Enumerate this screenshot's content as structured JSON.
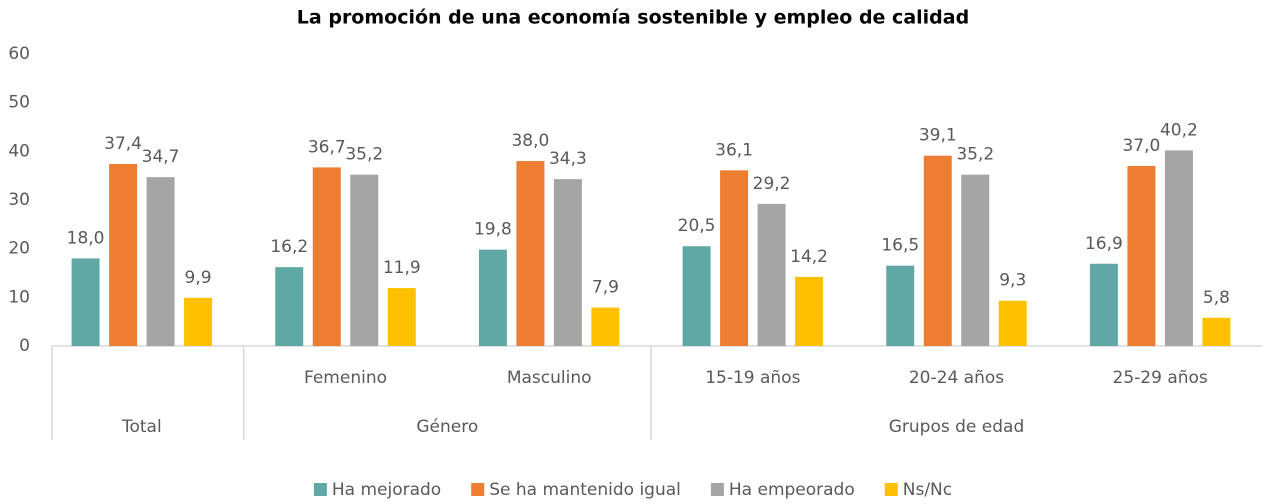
{
  "chart_data": {
    "type": "bar",
    "title": "La promoción de una economía sostenible y empleo de calidad",
    "categories": [
      null,
      "Femenino",
      "Masculino",
      "15-19 años",
      "20-24 años",
      "25-29 años"
    ],
    "groups": [
      {
        "label": "Total",
        "count": 1
      },
      {
        "label": "Género",
        "count": 2
      },
      {
        "label": "Grupos de edad",
        "count": 3
      }
    ],
    "series": [
      {
        "name": "Ha mejorado",
        "color": "#5fa8a5",
        "values": [
          18.0,
          16.2,
          19.8,
          20.5,
          16.5,
          16.9
        ],
        "value_labels": [
          "18,0",
          "16,2",
          "19,8",
          "20,5",
          "16,5",
          "16,9"
        ]
      },
      {
        "name": "Se ha mantenido igual",
        "color": "#ed7d31",
        "values": [
          37.4,
          36.7,
          38.0,
          36.1,
          39.1,
          37.0
        ],
        "value_labels": [
          "37,4",
          "36,7",
          "38,0",
          "36,1",
          "39,1",
          "37,0"
        ]
      },
      {
        "name": "Ha empeorado",
        "color": "#a5a5a5",
        "values": [
          34.7,
          35.2,
          34.3,
          29.2,
          35.2,
          40.2
        ],
        "value_labels": [
          "34,7",
          "35,2",
          "34,3",
          "29,2",
          "35,2",
          "40,2"
        ]
      },
      {
        "name": "Ns/Nc",
        "color": "#ffc000",
        "values": [
          9.9,
          11.9,
          7.9,
          14.2,
          9.3,
          5.8
        ],
        "value_labels": [
          "9,9",
          "11,9",
          "7,9",
          "14,2",
          "9,3",
          "5,8"
        ]
      }
    ],
    "ylim": [
      0,
      60
    ],
    "yticks": [
      0,
      10,
      20,
      30,
      40,
      50,
      60
    ],
    "grid": false,
    "legend": "bottom"
  }
}
